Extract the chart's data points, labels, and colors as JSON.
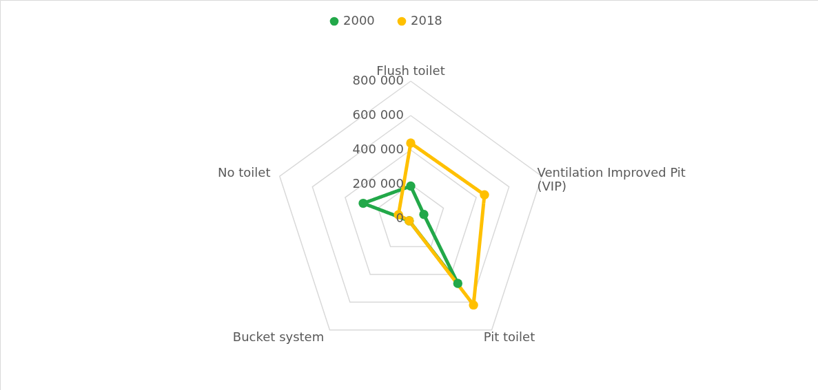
{
  "chart_data": {
    "type": "radar",
    "categories": [
      "Flush toilet",
      "Ventilation Improved Pit (VIP)",
      "Pit toilet",
      "Bucket system",
      "No toilet"
    ],
    "series": [
      {
        "name": "2000",
        "color": "#22a849",
        "values": [
          190000,
          80000,
          465000,
          15000,
          290000
        ]
      },
      {
        "name": "2018",
        "color": "#ffc000",
        "values": [
          440000,
          450000,
          620000,
          15000,
          75000
        ]
      }
    ],
    "ylim": [
      0,
      800000
    ],
    "yticks": [
      {
        "value": 0,
        "label": "0"
      },
      {
        "value": 200000,
        "label": "200 000"
      },
      {
        "value": 400000,
        "label": "400 000"
      },
      {
        "value": 600000,
        "label": "600 000"
      },
      {
        "value": 800000,
        "label": "800 000"
      }
    ],
    "grid": true,
    "legend": "top",
    "marker": "circle",
    "line_style": "solid"
  }
}
